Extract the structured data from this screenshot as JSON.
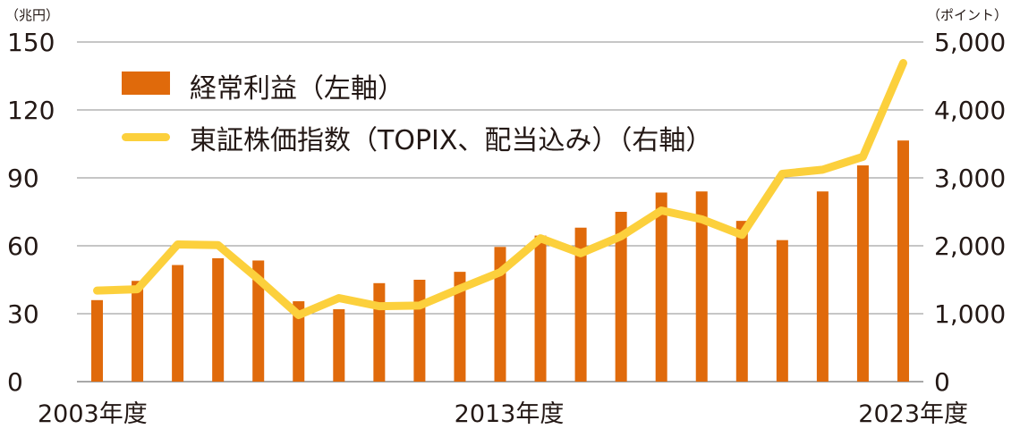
{
  "units": {
    "left": "（兆円）",
    "right": "（ポイント）"
  },
  "legend": {
    "bar_label": "経常利益（左軸）",
    "line_label": "東証株価指数（TOPIX、配当込み）（右軸）"
  },
  "colors": {
    "bar": "#e06a0b",
    "line": "#fcd03c",
    "grid": "#8c8c8c",
    "text": "#231815"
  },
  "chart_data": {
    "type": "bar+line",
    "categories": [
      "2003年度",
      "2004年度",
      "2005年度",
      "2006年度",
      "2007年度",
      "2008年度",
      "2009年度",
      "2010年度",
      "2011年度",
      "2012年度",
      "2013年度",
      "2014年度",
      "2015年度",
      "2016年度",
      "2017年度",
      "2018年度",
      "2019年度",
      "2020年度",
      "2021年度",
      "2022年度",
      "2023年度"
    ],
    "x_tick_labels": [
      {
        "index": 0,
        "label": "2003年度"
      },
      {
        "index": 10,
        "label": "2013年度"
      },
      {
        "index": 20,
        "label": "2023年度"
      }
    ],
    "series": [
      {
        "name": "経常利益（左軸）",
        "type": "bar",
        "axis": "left",
        "values": [
          36,
          44.5,
          51.5,
          54.5,
          53.5,
          35.5,
          32,
          43.5,
          45,
          48.5,
          59.5,
          64.5,
          68,
          75,
          83.5,
          84,
          71,
          62.5,
          84,
          95.5,
          106.5
        ]
      },
      {
        "name": "東証株価指数（TOPIX、配当込み）（右軸）",
        "type": "line",
        "axis": "right",
        "values": [
          1340,
          1360,
          2020,
          2010,
          1510,
          980,
          1230,
          1110,
          1120,
          1370,
          1610,
          2110,
          1890,
          2140,
          2520,
          2390,
          2160,
          3060,
          3120,
          3310,
          4690
        ]
      }
    ],
    "y_left": {
      "ticks": [
        "0",
        "30",
        "60",
        "90",
        "120",
        "150"
      ],
      "range": [
        0,
        150
      ]
    },
    "y_right": {
      "ticks": [
        "0",
        "1,000",
        "2,000",
        "3,000",
        "4,000",
        "5,000"
      ],
      "range": [
        0,
        5000
      ]
    },
    "grid": true,
    "legend_position": "top-left"
  }
}
